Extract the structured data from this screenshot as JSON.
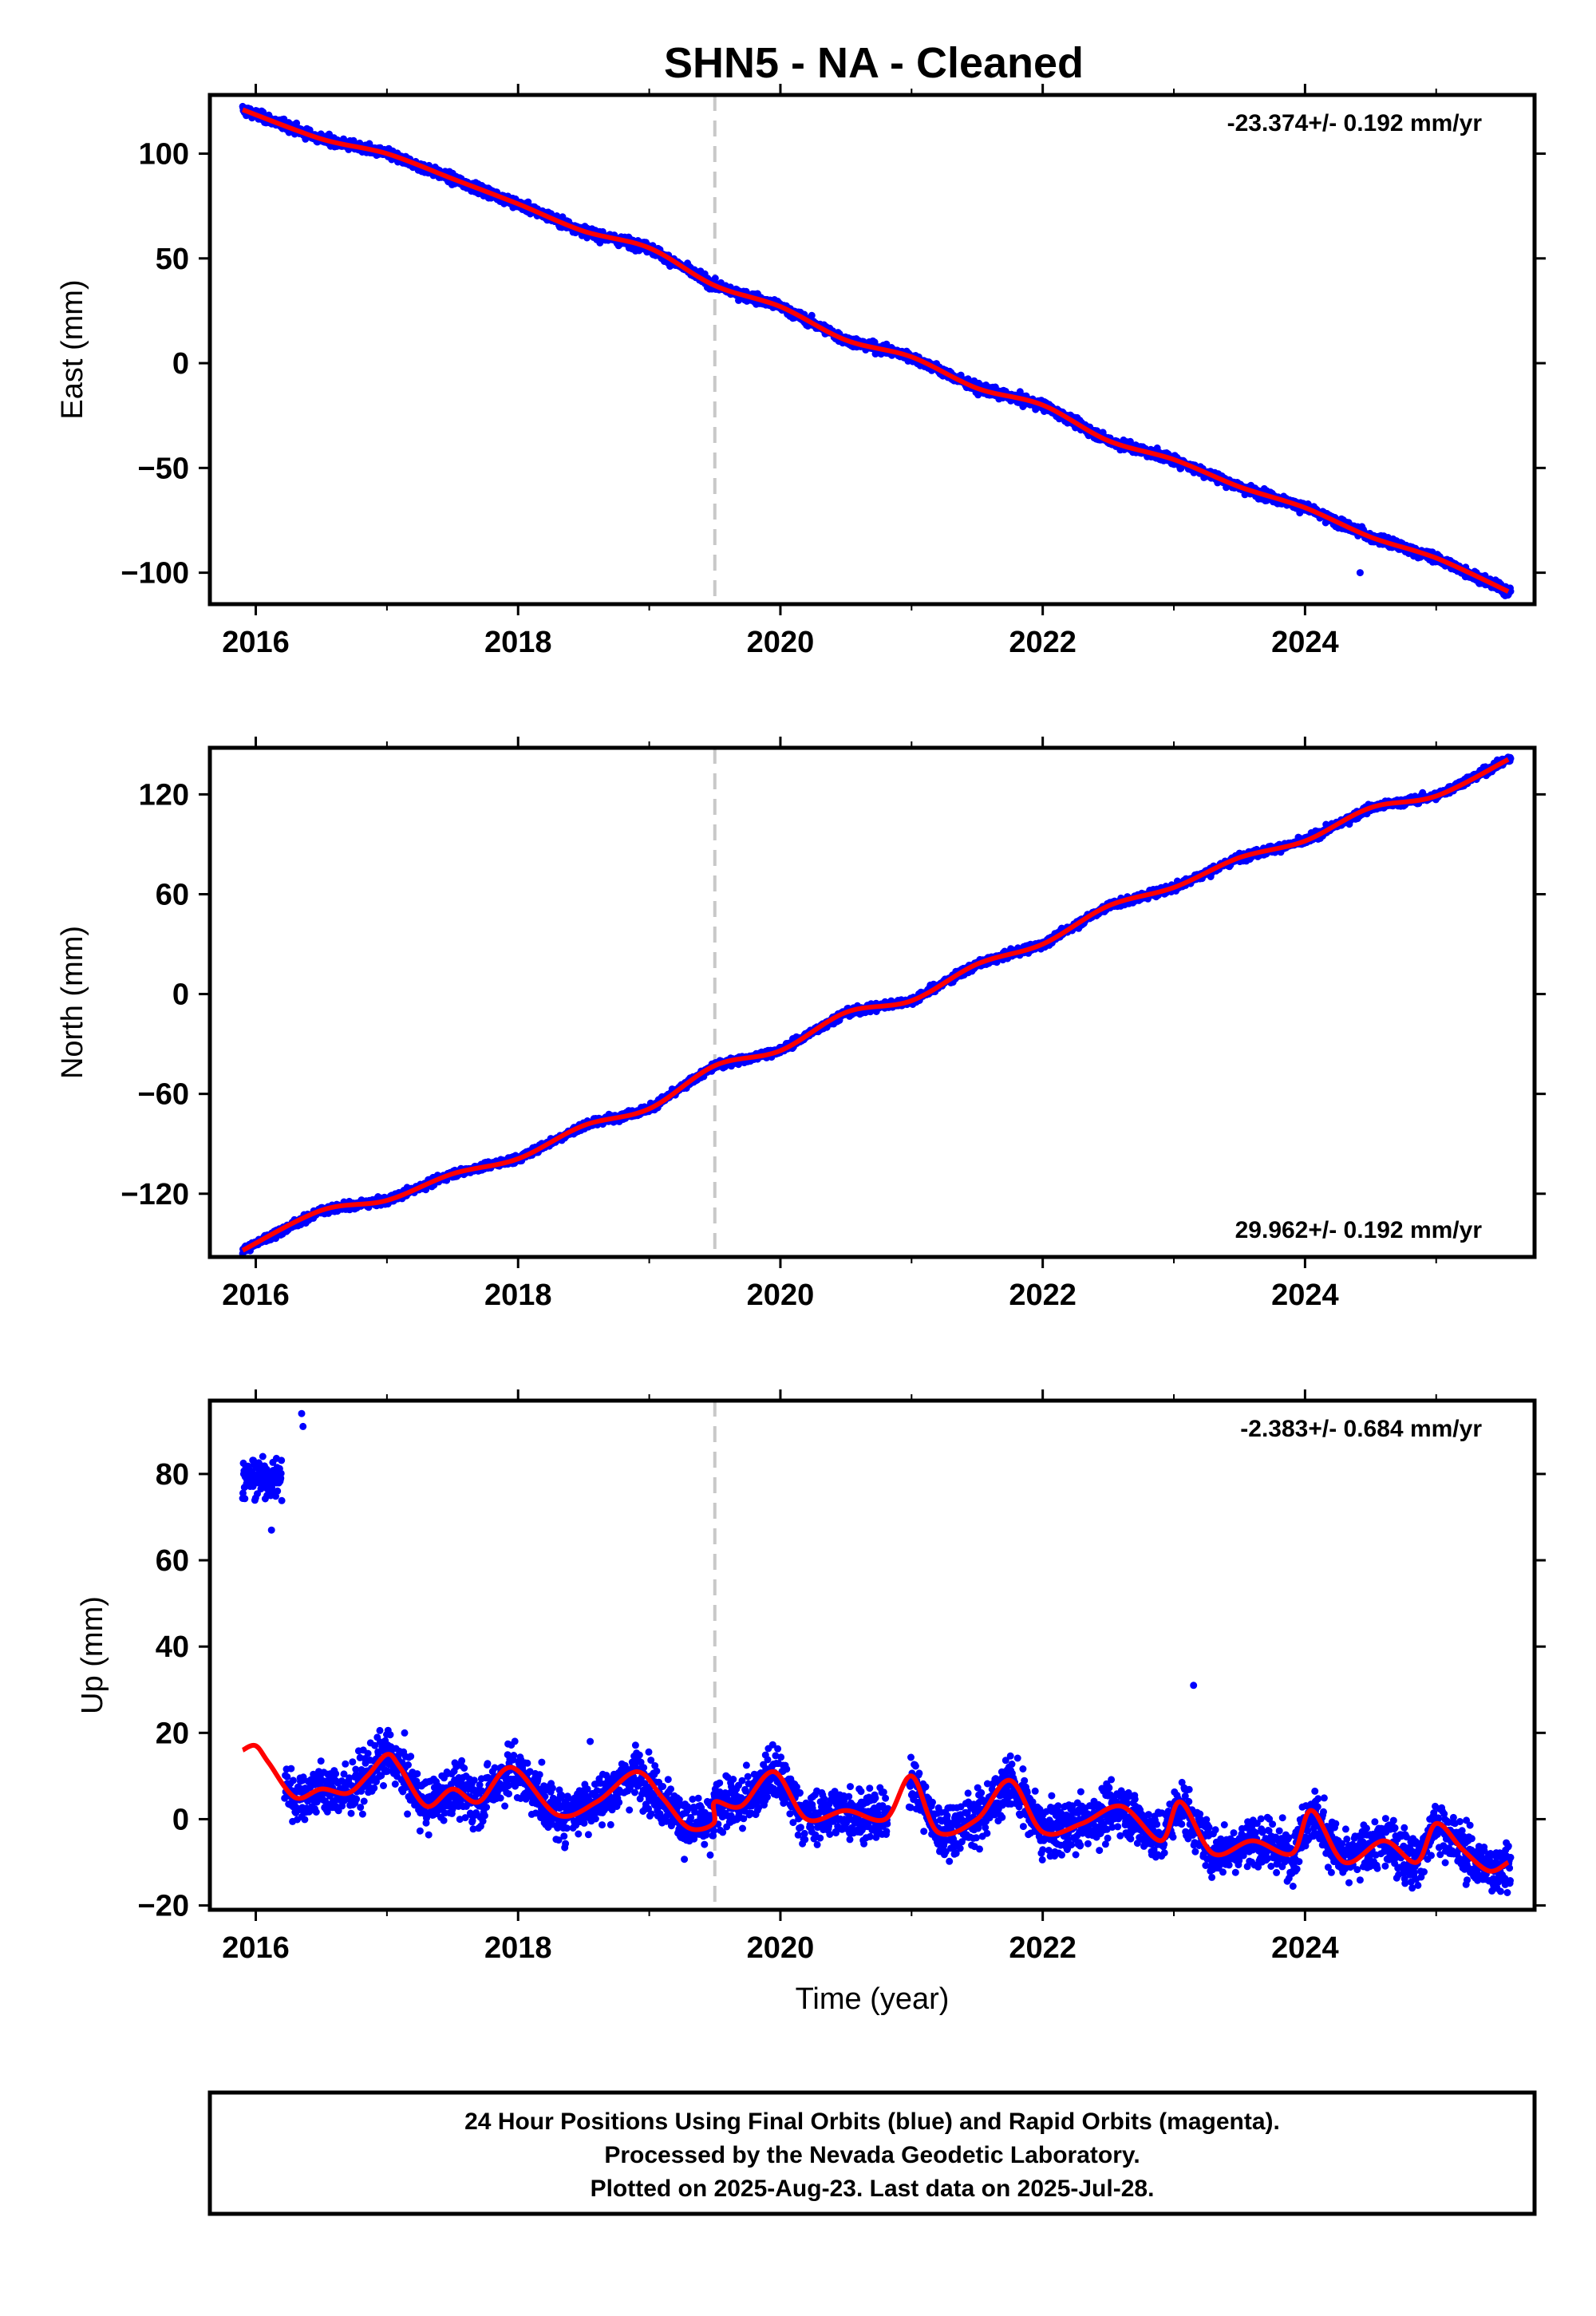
{
  "title": "SHN5  - NA - Cleaned",
  "footer": {
    "lines": [
      "24 Hour Positions Using Final Orbits (blue) and Rapid Orbits (magenta).",
      "Processed by the Nevada Geodetic Laboratory.",
      "Plotted on 2025-Aug-23. Last data on 2025-Jul-28."
    ]
  },
  "colors": {
    "points": "#0000ff",
    "fit": "#ff0000",
    "marker_line": "#c8c8c8",
    "frame": "#000000"
  },
  "chart_data": [
    {
      "type": "scatter",
      "ylabel": "East (mm)",
      "xlabel": "",
      "xlim": [
        2015.65,
        2025.75
      ],
      "ylim": [
        -115,
        128
      ],
      "xticks": [
        "2016",
        "2018",
        "2020",
        "2022",
        "2024"
      ],
      "yticks": [
        "100",
        "50",
        "0",
        "−50",
        "−100"
      ],
      "ytick_values": [
        100,
        50,
        0,
        -50,
        -100
      ],
      "rate_text": "-23.374+/- 0.192 mm/yr",
      "rate_position": "top-right",
      "equipment_change_x": 2019.5,
      "fit_line": {
        "x": [
          2015.9,
          2016.5,
          2017.0,
          2017.5,
          2018.0,
          2018.5,
          2019.0,
          2019.5,
          2020.0,
          2020.5,
          2021.0,
          2021.5,
          2022.0,
          2022.5,
          2023.0,
          2023.5,
          2024.0,
          2024.5,
          2025.0,
          2025.55
        ],
        "y": [
          121,
          107,
          100,
          88,
          76,
          63,
          55,
          37,
          27,
          11,
          3,
          -12,
          -20,
          -37,
          -46,
          -59,
          -69,
          -83,
          -93,
          -109
        ]
      },
      "outliers": [
        {
          "x": 2024.42,
          "y": -100
        }
      ],
      "series": [
        {
          "values": "daily positions 2015.9–2025.57 (blue dots)"
        }
      ]
    },
    {
      "type": "scatter",
      "ylabel": "North (mm)",
      "xlabel": "",
      "xlim": [
        2015.65,
        2025.75
      ],
      "ylim": [
        -158,
        148
      ],
      "xticks": [
        "2016",
        "2018",
        "2020",
        "2022",
        "2024"
      ],
      "yticks": [
        "120",
        "60",
        "0",
        "−60",
        "−120"
      ],
      "ytick_values": [
        120,
        60,
        0,
        -60,
        -120
      ],
      "rate_text": "29.962+/- 0.192 mm/yr",
      "rate_position": "bottom-right",
      "equipment_change_x": 2019.5,
      "fit_line": {
        "x": [
          2015.9,
          2016.5,
          2017.0,
          2017.5,
          2018.0,
          2018.5,
          2019.0,
          2019.5,
          2020.0,
          2020.5,
          2021.0,
          2021.5,
          2022.0,
          2022.5,
          2023.0,
          2023.5,
          2024.0,
          2024.5,
          2025.0,
          2025.55
        ],
        "y": [
          -154,
          -130,
          -124,
          -108,
          -99,
          -79,
          -69,
          -43,
          -34,
          -11,
          -4,
          18,
          30,
          53,
          64,
          82,
          92,
          112,
          119,
          141
        ]
      },
      "outliers": [],
      "series": [
        {
          "values": "daily positions 2015.9–2025.57 (blue dots)"
        }
      ]
    },
    {
      "type": "scatter",
      "ylabel": "Up (mm)",
      "xlabel": "Time (year)",
      "xlim": [
        2015.65,
        2025.75
      ],
      "ylim": [
        -21,
        97
      ],
      "xticks": [
        "2016",
        "2018",
        "2020",
        "2022",
        "2024"
      ],
      "yticks": [
        "80",
        "60",
        "40",
        "20",
        "0",
        "−20"
      ],
      "ytick_values": [
        80,
        60,
        40,
        20,
        0,
        -20
      ],
      "rate_text": "-2.383+/- 0.684 mm/yr",
      "rate_position": "top-right",
      "equipment_change_x": 2019.5,
      "early_cluster": {
        "x_range": [
          2015.9,
          2016.2
        ],
        "y_center": 79,
        "y_spread": 5
      },
      "fit_line": {
        "x": [
          2015.9,
          2016.0,
          2016.1,
          2016.3,
          2016.5,
          2016.7,
          2016.85,
          2017.0,
          2017.1,
          2017.3,
          2017.5,
          2017.7,
          2017.95,
          2018.3,
          2018.6,
          2018.9,
          2019.1,
          2019.3,
          2019.49,
          2019.5,
          2019.7,
          2019.95,
          2020.2,
          2020.5,
          2020.8,
          2021.0,
          2021.2,
          2021.5,
          2021.75,
          2022.0,
          2022.3,
          2022.6,
          2022.9,
          2023.05,
          2023.3,
          2023.6,
          2023.9,
          2024.05,
          2024.3,
          2024.6,
          2024.85,
          2025.0,
          2025.2,
          2025.4,
          2025.55
        ],
        "y": [
          16,
          17,
          13,
          5,
          7,
          6,
          10,
          15,
          12,
          3,
          7,
          4,
          12,
          1,
          4,
          11,
          5,
          -2,
          -1,
          4,
          3,
          11,
          0,
          2,
          0,
          10,
          -3,
          0,
          9,
          -3,
          -1,
          3,
          -5,
          4,
          -8,
          -5,
          -8,
          2,
          -10,
          -5,
          -10,
          -1,
          -7,
          -12,
          -10
        ]
      },
      "outliers": [
        {
          "x": 2016.35,
          "y": 94
        },
        {
          "x": 2016.36,
          "y": 91
        },
        {
          "x": 2016.12,
          "y": 67
        },
        {
          "x": 2023.15,
          "y": 31
        },
        {
          "x": 2018.55,
          "y": 18
        }
      ],
      "series": [
        {
          "values": "daily positions 2015.9–2025.57 (blue dots)"
        }
      ]
    }
  ]
}
